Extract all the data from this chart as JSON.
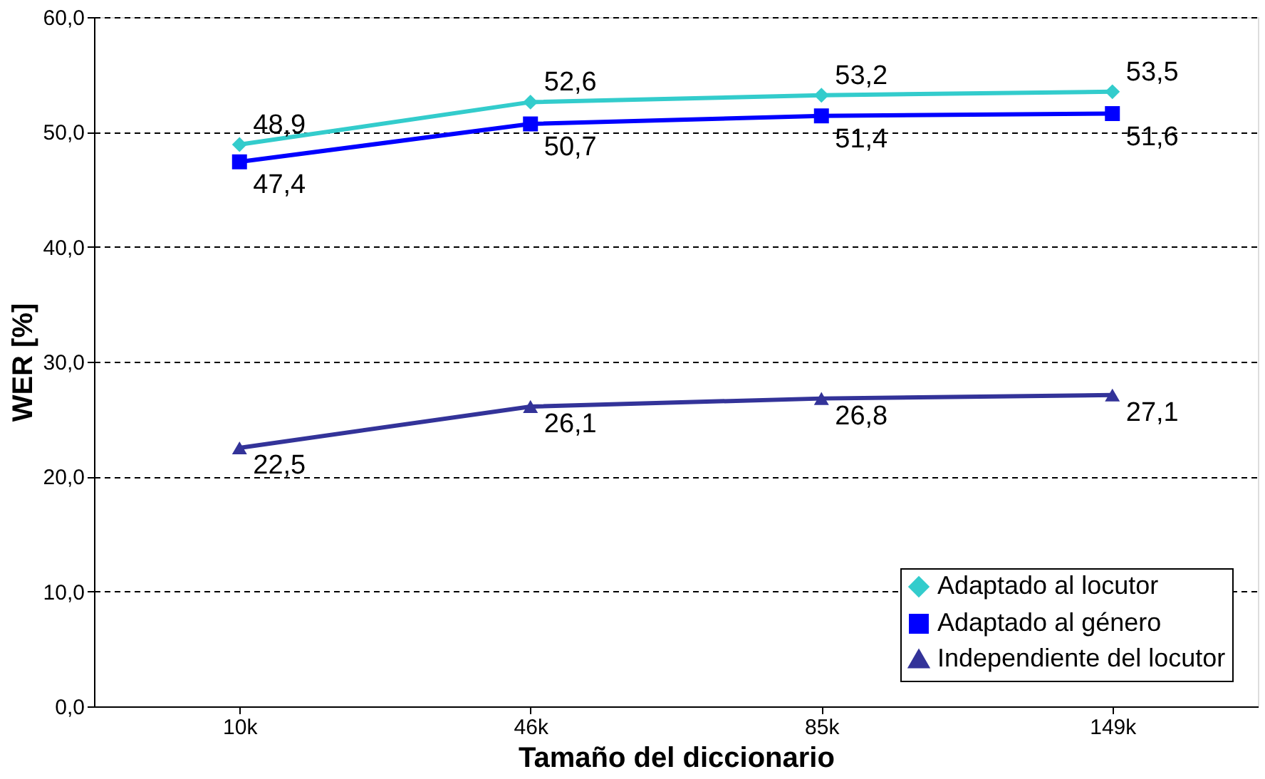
{
  "chart_data": {
    "type": "line",
    "xlabel": "Tamaño del diccionario",
    "ylabel": "WER [%]",
    "categories": [
      "10k",
      "46k",
      "85k",
      "149k"
    ],
    "series": [
      {
        "name": "Adaptado al locutor",
        "color": "#33cccc",
        "marker": "diamond",
        "values": [
          48.9,
          52.6,
          53.2,
          53.5
        ],
        "value_labels": [
          "48,9",
          "52,6",
          "53,2",
          "53,5"
        ]
      },
      {
        "name": "Adaptado al género",
        "color": "#0000ff",
        "marker": "square",
        "values": [
          47.4,
          50.7,
          51.4,
          51.6
        ],
        "value_labels": [
          "47,4",
          "50,7",
          "51,4",
          "51,6"
        ]
      },
      {
        "name": "Independiente del locutor",
        "color": "#333399",
        "marker": "triangle",
        "values": [
          22.5,
          26.1,
          26.8,
          27.1
        ],
        "value_labels": [
          "22,5",
          "26,1",
          "26,8",
          "27,1"
        ]
      }
    ],
    "ylim": [
      0,
      60
    ],
    "yticks": [
      {
        "value": 0,
        "label": "0,0"
      },
      {
        "value": 10,
        "label": "10,0"
      },
      {
        "value": 20,
        "label": "20,0"
      },
      {
        "value": 30,
        "label": "30,0"
      },
      {
        "value": 40,
        "label": "40,0"
      },
      {
        "value": 50,
        "label": "50,0"
      },
      {
        "value": 60,
        "label": "60,0"
      }
    ],
    "grid": "y",
    "legend": "bottom right",
    "line_style": "solid"
  }
}
